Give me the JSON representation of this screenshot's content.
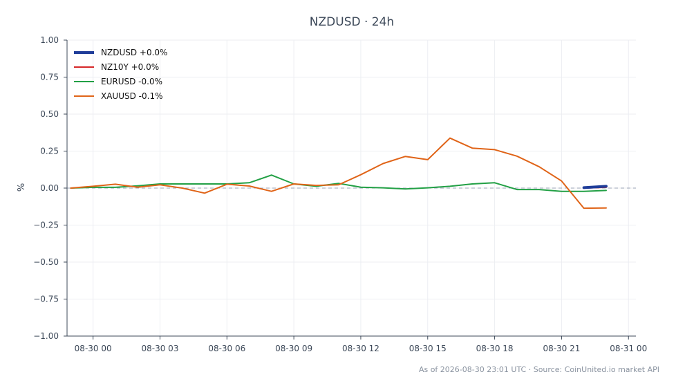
{
  "chart_data": {
    "type": "line",
    "title": "NZDUSD · 24h",
    "ylabel": "%",
    "xlabel": "",
    "ylim": [
      -1.0,
      1.0
    ],
    "xlim": [
      "2026-08-29 22:50",
      "2026-08-31 00:20"
    ],
    "grid": true,
    "legend_position": "top-left",
    "zero_line": 0.0,
    "yticks": [
      1.0,
      0.75,
      0.5,
      0.25,
      0.0,
      -0.25,
      -0.5,
      -0.75,
      -1.0
    ],
    "ytick_labels": [
      "1.00",
      "0.75",
      "0.50",
      "0.25",
      "0.00",
      "−0.25",
      "−0.50",
      "−0.75",
      "−1.00"
    ],
    "xticks": [
      "2026-08-30 00:00",
      "2026-08-30 03:00",
      "2026-08-30 06:00",
      "2026-08-30 09:00",
      "2026-08-30 12:00",
      "2026-08-30 15:00",
      "2026-08-30 18:00",
      "2026-08-30 21:00",
      "2026-08-31 00:00"
    ],
    "xtick_labels": [
      "08-30 00",
      "08-30 03",
      "08-30 06",
      "08-30 09",
      "08-30 12",
      "08-30 15",
      "08-30 18",
      "08-30 21",
      "08-31 00"
    ],
    "series": [
      {
        "name": "NZDUSD +0.0%",
        "color": "#1f3d99",
        "x": [
          "2026-08-30 22:00",
          "2026-08-30 23:00"
        ],
        "y": [
          0.003,
          0.012
        ]
      },
      {
        "name": "NZ10Y +0.0%",
        "color": "#d62728",
        "x": [
          "2026-08-30 22:00",
          "2026-08-30 23:00"
        ],
        "y": [
          0.0,
          0.005
        ]
      },
      {
        "name": "EURUSD -0.0%",
        "color": "#22a045",
        "x": [
          "2026-08-29 23:00",
          "2026-08-30 00:00",
          "2026-08-30 01:00",
          "2026-08-30 02:00",
          "2026-08-30 03:00",
          "2026-08-30 04:00",
          "2026-08-30 05:00",
          "2026-08-30 06:00",
          "2026-08-30 07:00",
          "2026-08-30 08:00",
          "2026-08-30 09:00",
          "2026-08-30 10:00",
          "2026-08-30 11:00",
          "2026-08-30 12:00",
          "2026-08-30 13:00",
          "2026-08-30 14:00",
          "2026-08-30 15:00",
          "2026-08-30 16:00",
          "2026-08-30 17:00",
          "2026-08-30 18:00",
          "2026-08-30 19:00",
          "2026-08-30 20:00",
          "2026-08-30 21:00",
          "2026-08-30 22:00",
          "2026-08-30 23:00"
        ],
        "y": [
          0.0,
          0.005,
          0.005,
          0.015,
          0.028,
          0.028,
          0.028,
          0.028,
          0.036,
          0.088,
          0.028,
          0.012,
          0.032,
          0.006,
          0.002,
          -0.006,
          0.002,
          0.012,
          0.028,
          0.036,
          -0.01,
          -0.01,
          -0.022,
          -0.022,
          -0.016
        ]
      },
      {
        "name": "XAUUSD -0.1%",
        "color": "#e06418",
        "x": [
          "2026-08-29 23:00",
          "2026-08-30 00:00",
          "2026-08-30 01:00",
          "2026-08-30 02:00",
          "2026-08-30 03:00",
          "2026-08-30 04:00",
          "2026-08-30 05:00",
          "2026-08-30 06:00",
          "2026-08-30 07:00",
          "2026-08-30 08:00",
          "2026-08-30 09:00",
          "2026-08-30 10:00",
          "2026-08-30 11:00",
          "2026-08-30 12:00",
          "2026-08-30 13:00",
          "2026-08-30 14:00",
          "2026-08-30 15:00",
          "2026-08-30 16:00",
          "2026-08-30 17:00",
          "2026-08-30 18:00",
          "2026-08-30 19:00",
          "2026-08-30 20:00",
          "2026-08-30 21:00",
          "2026-08-30 22:00",
          "2026-08-30 23:00"
        ],
        "y": [
          0.0,
          0.012,
          0.026,
          0.006,
          0.022,
          0.0,
          -0.034,
          0.026,
          0.014,
          -0.022,
          0.028,
          0.018,
          0.022,
          0.09,
          0.166,
          0.214,
          0.192,
          0.338,
          0.27,
          0.26,
          0.216,
          0.144,
          0.048,
          -0.136,
          -0.134
        ]
      }
    ],
    "footer": "As of 2026-08-30 23:01 UTC · Source: CoinUnited.io market API"
  }
}
